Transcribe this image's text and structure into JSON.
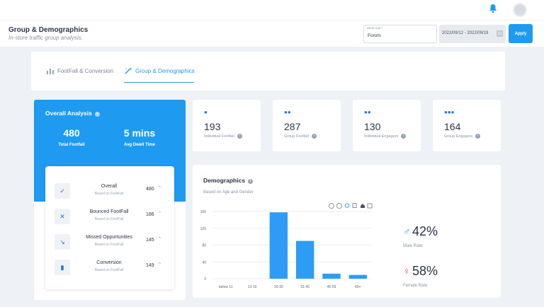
{
  "header": {
    "title": "Group & Demographics",
    "subtitle": "In-store traffic group analysis.",
    "store_label": "Store Cat *",
    "store_value": "Forum",
    "date_range": "2022/09/12 - 2022/09/19",
    "calendar_icon_text": "31",
    "apply_label": "Apply",
    "bell_icon": "bell-icon"
  },
  "tabs": [
    {
      "label": "FootFall & Conversion",
      "icon": "bar-chart-icon"
    },
    {
      "label": "Group & Demographics",
      "icon": "wand-icon"
    }
  ],
  "overview": {
    "title": "Overall Analysis",
    "info": "i",
    "total_footfall": "480",
    "total_footfall_label": "Total Footfall",
    "avg_dwell": "5 mins",
    "avg_dwell_label": "Avg Dwell Time",
    "items": [
      {
        "name": "Overall",
        "sub": "Based on FootFall",
        "value": "480",
        "trend": "^",
        "icon": "check-icon"
      },
      {
        "name": "Bounced FootFall",
        "sub": "Based on FootFall",
        "value": "186",
        "trend": "^",
        "icon": "bounce-icon"
      },
      {
        "name": "Missed Oppurtunities",
        "sub": "Based on FootFall",
        "value": "145",
        "trend": "^",
        "icon": "missed-icon"
      },
      {
        "name": "Conversion",
        "sub": "Based on FootFall",
        "value": "149",
        "trend": "^",
        "icon": "bars-icon"
      }
    ]
  },
  "stats": [
    {
      "value": "193",
      "label": "Individual Footfall",
      "icon": "person-icon"
    },
    {
      "value": "287",
      "label": "Group Footfall",
      "icon": "group-icon"
    },
    {
      "value": "130",
      "label": "Individual Engagers",
      "icon": "engagers-icon"
    },
    {
      "value": "164",
      "label": "Group Engagers",
      "icon": "group-engagers-icon"
    }
  ],
  "demographics": {
    "title": "Demographics",
    "subtitle": "Based on Age and Gender",
    "male_rate": "42%",
    "male_label": "Male Rate",
    "female_rate": "58%",
    "female_label": "Female Rate",
    "colors": {
      "bar": "#2d9cf5",
      "male": "#1e9bf0",
      "female": "#e9436b"
    },
    "toolbar_icons": [
      "zoom-in-icon",
      "zoom-out-icon",
      "search-icon",
      "pan-icon",
      "home-icon",
      "download-icon"
    ]
  },
  "chart_data": {
    "type": "bar",
    "categories": [
      "below 11",
      "13-19",
      "20-30",
      "31-45",
      "46-59",
      "60+"
    ],
    "values": [
      0,
      0,
      158,
      90,
      12,
      9
    ],
    "xlabel": "",
    "ylabel": "",
    "ylim": [
      0,
      160
    ],
    "yticks": [
      0,
      40,
      80,
      120,
      160
    ],
    "grid": true
  }
}
